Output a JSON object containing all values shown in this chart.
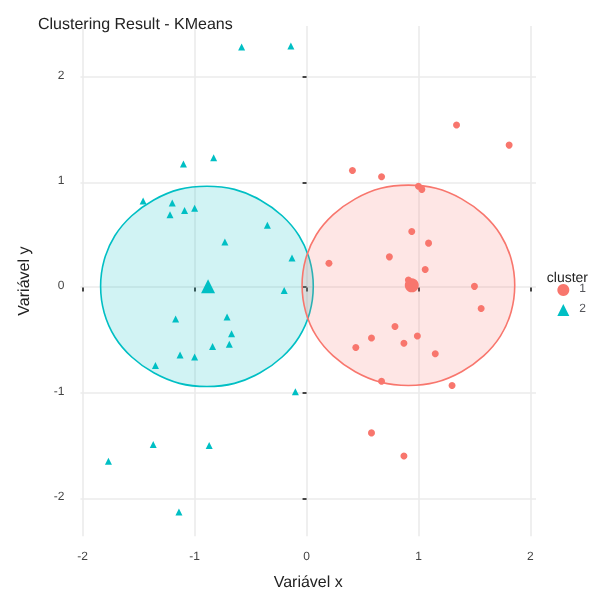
{
  "chart_data": {
    "type": "scatter",
    "title": "Clustering Result - KMeans",
    "xlabel": "Variável x",
    "ylabel": "Variável y",
    "legend_title": "cluster",
    "legend": "right",
    "grid": true,
    "xlim": [
      -2.02,
      2.05
    ],
    "ylim": [
      -2.36,
      2.48
    ],
    "xticks": [
      -2,
      -1,
      0,
      1,
      2
    ],
    "yticks": [
      -2,
      -1,
      0,
      1,
      2
    ],
    "series": [
      {
        "type": "area",
        "color": "#00bfc4",
        "x": [
          0.06,
          0.028,
          -0.067,
          -0.218,
          -0.415,
          -0.644,
          -0.89,
          -1.136,
          -1.365,
          -1.562,
          -1.713,
          -1.808,
          -1.84,
          -1.808,
          -1.713,
          -1.562,
          -1.365,
          -1.136,
          -0.89,
          -0.644,
          -0.415,
          -0.218,
          -0.067,
          0.028
        ],
        "values": [
          0.01,
          0.26,
          0.49,
          0.68,
          0.83,
          0.93,
          0.96,
          0.93,
          0.83,
          0.68,
          0.49,
          0.26,
          0.01,
          -0.24,
          -0.47,
          -0.66,
          -0.81,
          -0.91,
          -0.94,
          -0.91,
          -0.81,
          -0.66,
          -0.47,
          -0.24
        ]
      },
      {
        "type": "area",
        "color": "#f8766d",
        "x": [
          1.86,
          1.828,
          1.733,
          1.582,
          1.385,
          1.156,
          0.91,
          0.664,
          0.435,
          0.238,
          0.087,
          -0.008,
          -0.04,
          -0.008,
          0.087,
          0.238,
          0.435,
          0.664,
          0.91,
          1.156,
          1.385,
          1.582,
          1.733,
          1.828
        ],
        "values": [
          0.02,
          0.27,
          0.5,
          0.69,
          0.84,
          0.94,
          0.97,
          0.94,
          0.84,
          0.69,
          0.5,
          0.27,
          0.02,
          -0.23,
          -0.46,
          -0.65,
          -0.8,
          -0.9,
          -0.93,
          -0.9,
          -0.8,
          -0.65,
          -0.46,
          -0.23
        ]
      },
      {
        "name": "1",
        "color": "#f8766d",
        "marker": "circle",
        "x": [
          1.34,
          1.81,
          0.41,
          0.67,
          1.0,
          1.03,
          0.94,
          1.09,
          0.2,
          0.74,
          1.06,
          0.91,
          1.5,
          1.56,
          0.79,
          0.58,
          0.99,
          0.87,
          0.44,
          1.15,
          0.67,
          1.3,
          0.58,
          0.87
        ],
        "values": [
          1.54,
          1.35,
          1.11,
          1.05,
          0.96,
          0.93,
          0.53,
          0.42,
          0.23,
          0.29,
          0.17,
          0.07,
          0.01,
          -0.2,
          -0.37,
          -0.48,
          -0.46,
          -0.53,
          -0.57,
          -0.63,
          -0.89,
          -0.93,
          -1.38,
          -1.6
        ]
      },
      {
        "name": "2",
        "color": "#00bfc4",
        "marker": "triangle",
        "x": [
          -0.58,
          -0.14,
          -1.1,
          -0.83,
          -1.46,
          -1.2,
          -1.22,
          -1.09,
          -1.0,
          -0.73,
          -0.35,
          -0.13,
          -0.2,
          -1.17,
          -0.71,
          -0.67,
          -0.69,
          -0.84,
          -1.0,
          -1.13,
          -1.35,
          -0.1,
          -1.37,
          -0.87,
          -1.77,
          -1.14
        ],
        "values": [
          2.28,
          2.29,
          1.17,
          1.23,
          0.82,
          0.8,
          0.69,
          0.73,
          0.75,
          0.43,
          0.59,
          0.28,
          -0.03,
          -0.3,
          -0.28,
          -0.44,
          -0.54,
          -0.56,
          -0.66,
          -0.64,
          -0.74,
          -0.99,
          -1.49,
          -1.5,
          -1.65,
          -2.13
        ]
      },
      {
        "color": "#f8766d",
        "marker": "circle",
        "x": [
          0.94
        ],
        "values": [
          0.02
        ]
      },
      {
        "color": "#00bfc4",
        "marker": "triangle",
        "x": [
          -0.88
        ],
        "values": [
          0.01
        ]
      }
    ]
  }
}
